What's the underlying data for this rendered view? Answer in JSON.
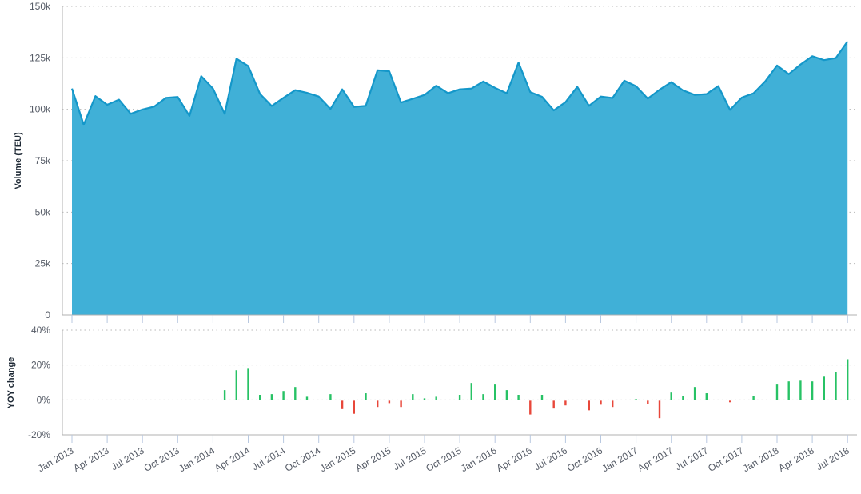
{
  "chart_data": [
    {
      "type": "area",
      "ylabel": "Volume (TEU)",
      "ylim": [
        0,
        150000
      ],
      "yticks": [
        "0",
        "25k",
        "50k",
        "75k",
        "100k",
        "125k",
        "150k"
      ],
      "ytick_values": [
        0,
        25000,
        50000,
        75000,
        100000,
        125000,
        150000
      ],
      "grid": true,
      "start_month": "2013-01",
      "values_k": [
        110.1,
        92.5,
        106.4,
        102.2,
        104.7,
        97.8,
        99.9,
        101.3,
        105.6,
        106.0,
        96.8,
        116.1,
        110.1,
        97.8,
        124.6,
        121.0,
        107.5,
        101.6,
        105.6,
        109.3,
        108.0,
        106.2,
        100.2,
        109.7,
        101.2,
        101.7,
        119.0,
        118.5,
        103.3,
        105.1,
        107.0,
        111.5,
        107.8,
        109.7,
        110.1,
        113.5,
        110.4,
        107.8,
        122.7,
        108.4,
        106.1,
        99.5,
        103.5,
        110.9,
        101.7,
        106.2,
        105.5,
        113.9,
        111.2,
        105.2,
        109.5,
        113.2,
        109.2,
        107.0,
        107.4,
        111.3,
        99.7,
        105.7,
        107.8,
        113.6,
        121.3,
        117.1,
        121.8,
        125.8,
        123.9,
        124.9,
        133.0
      ],
      "colors": {
        "fill": "#40b0d7",
        "line": "#1497c9"
      }
    },
    {
      "type": "bar",
      "ylabel": "YOY change",
      "ylim": [
        -20,
        40
      ],
      "yticks": [
        "-20%",
        "0%",
        "20%",
        "40%"
      ],
      "ytick_values": [
        -20,
        0,
        20,
        40
      ],
      "grid": true,
      "start_month": "2014-01",
      "values_pct": [
        0,
        5.6,
        17.0,
        18.3,
        2.9,
        3.3,
        5.1,
        7.4,
        1.8,
        0.2,
        3.3,
        -4.8,
        -7.5,
        3.8,
        -3.6,
        -1.4,
        -3.6,
        3.3,
        0.9,
        1.8,
        0.1,
        2.9,
        9.7,
        3.3,
        8.8,
        5.6,
        2.9,
        -7.9,
        2.9,
        -4.5,
        -2.7,
        -0.2,
        -5.5,
        -2.3,
        -3.6,
        0.2,
        0.5,
        -1.8,
        -10.0,
        4.2,
        2.4,
        7.4,
        3.8,
        0.1,
        -0.9,
        0.1,
        2.0,
        -0.1,
        8.8,
        10.6,
        11.0,
        10.6,
        13.3,
        16.1,
        23.3
      ],
      "colors": {
        "positive": "#27c265",
        "negative": "#e8473a"
      }
    }
  ],
  "x_axis": {
    "tick_labels": [
      "Jan 2013",
      "Apr 2013",
      "Jul 2013",
      "Oct 2013",
      "Jan 2014",
      "Apr 2014",
      "Jul 2014",
      "Oct 2014",
      "Jan 2015",
      "Apr 2015",
      "Jul 2015",
      "Oct 2015",
      "Jan 2016",
      "Apr 2016",
      "Jul 2016",
      "Oct 2016",
      "Jan 2017",
      "Apr 2017",
      "Jul 2017",
      "Oct 2017",
      "Jan 2018",
      "Apr 2018",
      "Jul 2018"
    ]
  }
}
